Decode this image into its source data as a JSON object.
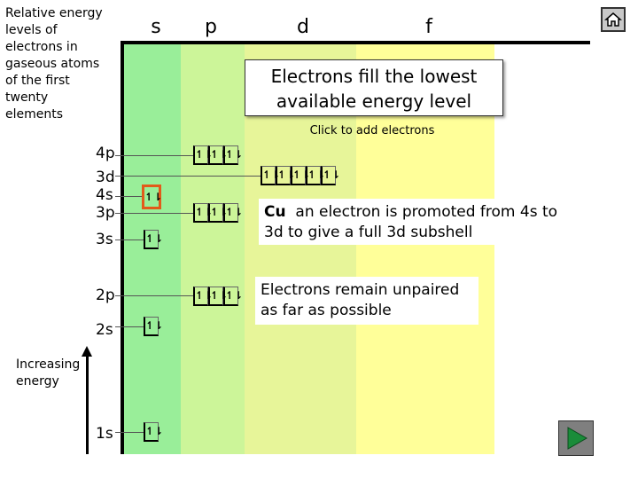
{
  "title": "Relative energy levels of electrons in gaseous atoms of the first twenty elements",
  "headers": {
    "s": "s",
    "p": "p",
    "d": "d",
    "f": "f"
  },
  "callout_fill": "Electrons fill the lowest available energy level",
  "click_hint": "Click to add electrons",
  "note_cu_bold": "Cu",
  "note_cu_text": "an electron is promoted from 4s to 3d to give a full 3d subshell",
  "note_unpaired": "Electrons remain unpaired as far as possible",
  "levels": {
    "l4p": "4p",
    "l3d": "3d",
    "l4s": "4s",
    "l3p": "3p",
    "l3s": "3s",
    "l2p": "2p",
    "l2s": "2s",
    "l1s": "1s"
  },
  "axis_label": "Increasing energy",
  "electron_pair": "↿⇂",
  "colors": {
    "s_block": "#99ee99",
    "p_block": "#ccf599",
    "d_block": "#e7f599",
    "f_block": "#ffff99",
    "highlight": "#e25a1a",
    "play_arrow": "#1a8c3a"
  },
  "icons": {
    "home": "home-icon",
    "next": "play-arrow-icon"
  }
}
